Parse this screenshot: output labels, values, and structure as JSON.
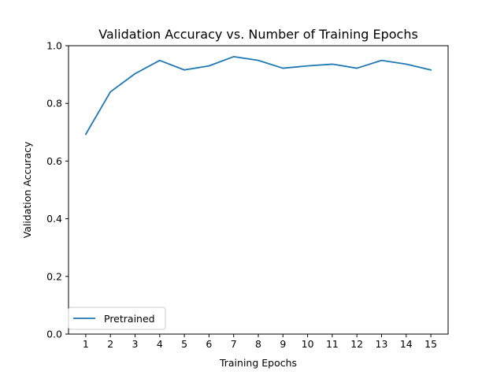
{
  "chart_data": {
    "type": "line",
    "title": "Validation Accuracy vs. Number of Training Epochs",
    "xlabel": "Training Epochs",
    "ylabel": "Validation Accuracy",
    "x": [
      1,
      2,
      3,
      4,
      5,
      6,
      7,
      8,
      9,
      10,
      11,
      12,
      13,
      14,
      15
    ],
    "xtick_labels": [
      "1",
      "2",
      "3",
      "4",
      "5",
      "6",
      "7",
      "8",
      "9",
      "10",
      "11",
      "12",
      "13",
      "14",
      "15"
    ],
    "ytick_labels": [
      "0.0",
      "0.2",
      "0.4",
      "0.6",
      "0.8",
      "1.0"
    ],
    "yticks": [
      0.0,
      0.2,
      0.4,
      0.6,
      0.8,
      1.0
    ],
    "xlim": [
      0.3,
      15.7
    ],
    "ylim": [
      0.0,
      1.0
    ],
    "grid": false,
    "legend_position": "lower-left",
    "series": [
      {
        "name": "Pretrained",
        "color": "#1f77b4",
        "values": [
          0.693,
          0.84,
          0.903,
          0.949,
          0.916,
          0.93,
          0.962,
          0.949,
          0.922,
          0.93,
          0.936,
          0.922,
          0.949,
          0.936,
          0.916
        ]
      }
    ]
  }
}
